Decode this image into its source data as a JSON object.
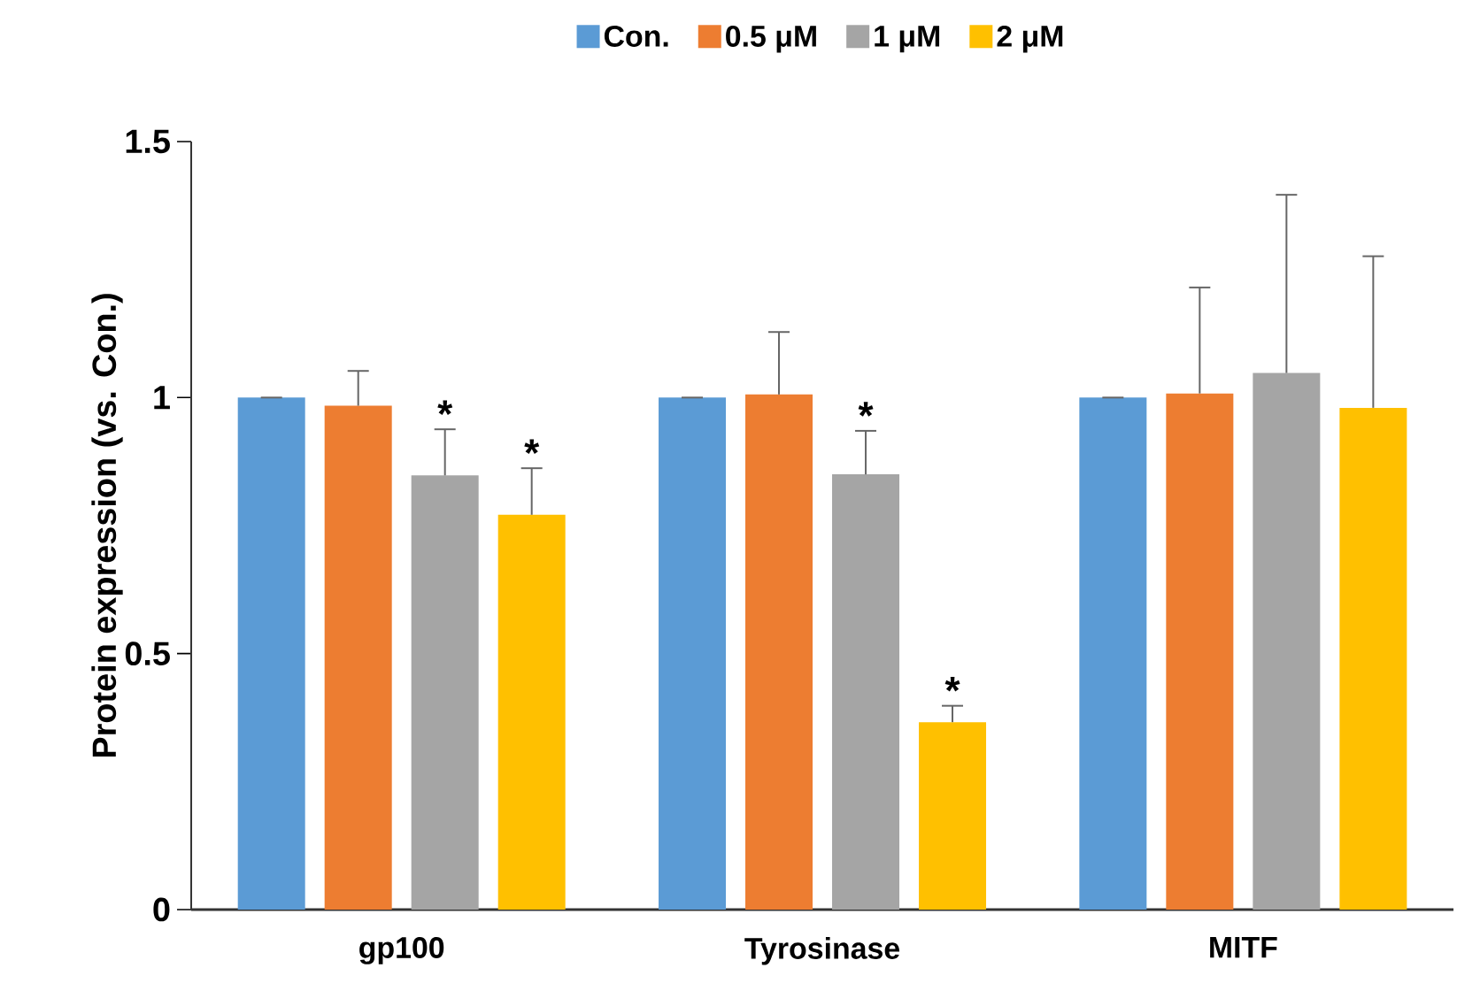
{
  "chart_data": {
    "type": "bar",
    "ylabel": "Protein expression (vs. Con.)",
    "categories": [
      "gp100",
      "Tyrosinase",
      "MITF"
    ],
    "series": [
      {
        "name": "Con.",
        "color": "#5b9bd5",
        "values": [
          1.0,
          1.0,
          1.0
        ],
        "errors": [
          [
            1.0,
            1.0
          ],
          [
            1.0,
            1.0
          ],
          [
            1.0,
            1.0
          ]
        ]
      },
      {
        "name": "0.5 μM",
        "color": "#ed7d31",
        "values": [
          0.984,
          1.006,
          1.008
        ],
        "errors": [
          [
            0.984,
            1.052
          ],
          [
            1.006,
            1.128
          ],
          [
            1.008,
            1.215
          ]
        ]
      },
      {
        "name": "1 μM",
        "color": "#a5a5a5",
        "values": [
          0.848,
          0.85,
          1.048
        ],
        "errors": [
          [
            0.848,
            0.938
          ],
          [
            0.85,
            0.935
          ],
          [
            1.048,
            1.396
          ]
        ]
      },
      {
        "name": "2 μM",
        "color": "#ffc000",
        "values": [
          0.771,
          0.366,
          0.98
        ],
        "errors": [
          [
            0.771,
            0.862
          ],
          [
            0.366,
            0.398
          ],
          [
            0.98,
            1.276
          ]
        ]
      }
    ],
    "ylim": [
      0,
      1.5
    ],
    "yticks": [
      0,
      0.5,
      1,
      1.5
    ],
    "legend": "top",
    "grid": false,
    "annotations": [
      "*",
      "*",
      "*",
      "*"
    ]
  }
}
